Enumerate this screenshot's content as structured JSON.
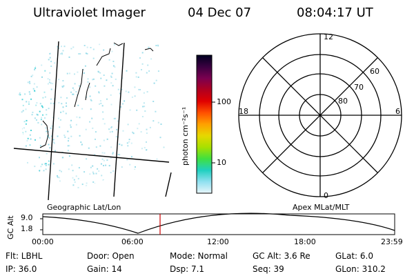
{
  "header": {
    "title": "Ultraviolet Imager",
    "date": "04 Dec 07",
    "time": "08:04:17 UT"
  },
  "image_panel": {
    "caption": "Geographic Lat/Lon",
    "colors": {
      "speckle": "#7fd3e4",
      "speckle_strong": "#1fc7d0",
      "grid": "#000000"
    }
  },
  "colorbar": {
    "unit_label": "photon cm⁻²s⁻¹",
    "ticks": [
      "100",
      "10"
    ],
    "colors": [
      "#000020",
      "#3a0040",
      "#7a0050",
      "#b00020",
      "#e00000",
      "#ff5000",
      "#ffa000",
      "#e6d800",
      "#a8e000",
      "#40e040",
      "#20d0c0",
      "#90e0f0",
      "#e8f6fa"
    ]
  },
  "polar_plot": {
    "caption": "Apex MLat/MLT",
    "mlt_labels": {
      "top": "12",
      "left": "18",
      "right": "6",
      "bottom": "0"
    },
    "lat_labels": [
      "60",
      "70",
      "80"
    ]
  },
  "altitude_strip": {
    "y_axis_label": "GC Alt",
    "y_ticks": [
      "9.0",
      "1.8"
    ],
    "x_ticks": [
      "00:00",
      "06:00",
      "12:00",
      "18:00",
      "23:59"
    ],
    "marker_color": "#cc0000",
    "marker_time": "08:04:17"
  },
  "status": {
    "row1": {
      "flt": "Flt: LBHL",
      "door": "Door: Open",
      "mode": "Mode: Normal",
      "gcalt": "GC Alt: 3.6 Re",
      "glat": "GLat:   6.0"
    },
    "row2": {
      "ip": "IP: 36.0",
      "gain": "Gain: 14",
      "dsp": "Dsp:    7.1",
      "seq": "Seq: 39",
      "glon": "GLon: 310.2"
    }
  }
}
